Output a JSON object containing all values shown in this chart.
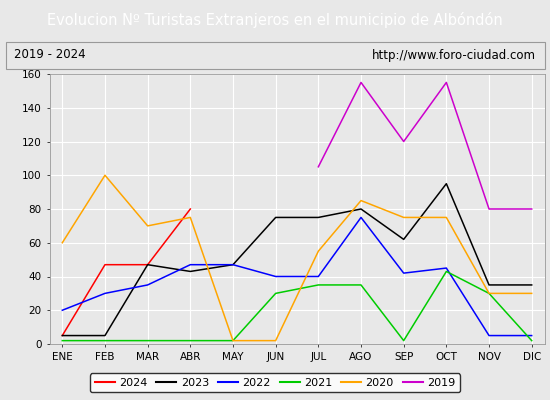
{
  "title": "Evolucion Nº Turistas Extranjeros en el municipio de Albóndón",
  "subtitle_left": "2019 - 2024",
  "subtitle_right": "http://www.foro-ciudad.com",
  "title_bg_color": "#4472c4",
  "title_text_color": "#ffffff",
  "months": [
    "ENE",
    "FEB",
    "MAR",
    "ABR",
    "MAY",
    "JUN",
    "JUL",
    "AGO",
    "SEP",
    "OCT",
    "NOV",
    "DIC"
  ],
  "ylim": [
    0,
    160
  ],
  "yticks": [
    0,
    20,
    40,
    60,
    80,
    100,
    120,
    140,
    160
  ],
  "series": {
    "2024": {
      "color": "#ff0000",
      "values": [
        5,
        47,
        47,
        80,
        null,
        null,
        null,
        null,
        null,
        null,
        null,
        null
      ]
    },
    "2023": {
      "color": "#000000",
      "values": [
        5,
        5,
        47,
        43,
        47,
        75,
        75,
        80,
        62,
        95,
        35,
        35
      ]
    },
    "2022": {
      "color": "#0000ff",
      "values": [
        20,
        30,
        35,
        47,
        47,
        40,
        40,
        75,
        42,
        45,
        5,
        5
      ]
    },
    "2021": {
      "color": "#00cc00",
      "values": [
        2,
        2,
        2,
        2,
        2,
        30,
        35,
        35,
        2,
        43,
        30,
        2
      ]
    },
    "2020": {
      "color": "#ffa500",
      "values": [
        60,
        100,
        70,
        75,
        2,
        2,
        55,
        85,
        75,
        75,
        30,
        30
      ]
    },
    "2019": {
      "color": "#cc00cc",
      "values": [
        null,
        null,
        null,
        null,
        null,
        null,
        105,
        155,
        120,
        155,
        80,
        80
      ]
    }
  },
  "bg_color": "#e8e8e8",
  "plot_bg_color": "#e8e8e8",
  "grid_color": "#ffffff",
  "legend_order": [
    "2024",
    "2023",
    "2022",
    "2021",
    "2020",
    "2019"
  ],
  "title_fontsize": 10.5,
  "subtitle_fontsize": 8.5,
  "tick_fontsize": 7.5,
  "legend_fontsize": 8
}
